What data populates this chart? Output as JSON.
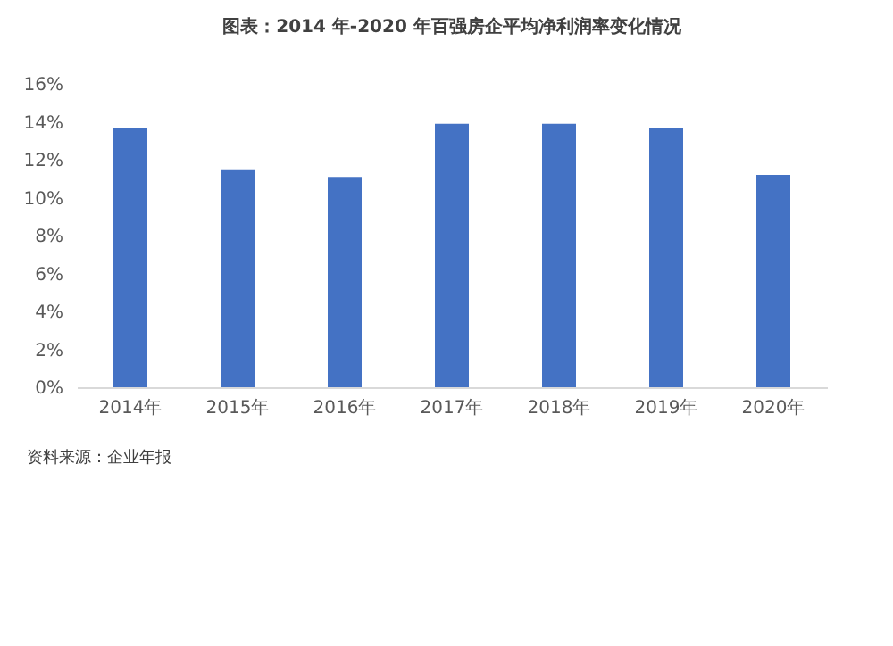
{
  "chart_data": {
    "type": "bar",
    "title": "图表：2014 年-2020 年百强房企平均净利润率变化情况",
    "categories": [
      "2014年",
      "2015年",
      "2016年",
      "2017年",
      "2018年",
      "2019年",
      "2020年"
    ],
    "values": [
      13.7,
      11.5,
      11.1,
      13.9,
      13.9,
      13.7,
      11.2
    ],
    "color": "#4472c4",
    "ylim": [
      0,
      16
    ],
    "yticks": [
      {
        "value": 0,
        "label": "0%"
      },
      {
        "value": 2,
        "label": "2%"
      },
      {
        "value": 4,
        "label": "4%"
      },
      {
        "value": 6,
        "label": "6%"
      },
      {
        "value": 8,
        "label": "8%"
      },
      {
        "value": 10,
        "label": "10%"
      },
      {
        "value": 12,
        "label": "12%"
      },
      {
        "value": 14,
        "label": "14%"
      },
      {
        "value": 16,
        "label": "16%"
      }
    ],
    "grid": false,
    "annotations": [
      "资料来源：企业年报"
    ]
  }
}
